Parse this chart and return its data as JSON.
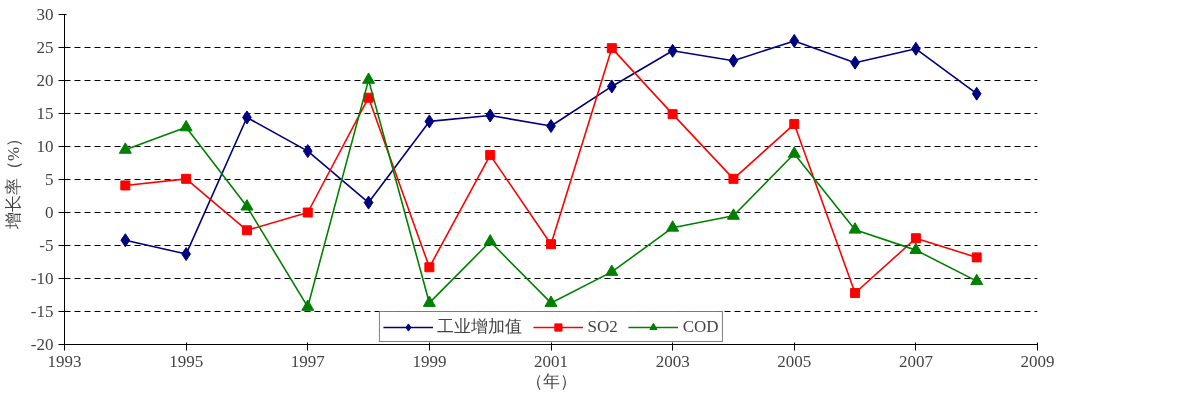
{
  "chart_data": {
    "type": "line",
    "ylabel": "增长率（%）",
    "xlabel": "（年）",
    "x": [
      1994,
      1995,
      1996,
      1997,
      1998,
      1999,
      2000,
      2001,
      2002,
      2003,
      2004,
      2005,
      2006,
      2007,
      2008
    ],
    "series": [
      {
        "name": "工业增加值",
        "color": "#000080",
        "marker": "diamond",
        "values": [
          -4.2,
          -6.3,
          14.4,
          9.3,
          1.5,
          13.8,
          14.7,
          13.1,
          19.1,
          24.5,
          23,
          26,
          22.7,
          24.8,
          18
        ]
      },
      {
        "name": "SO2",
        "color": "#ff0000",
        "marker": "square",
        "values": [
          4.1,
          5.1,
          -2.7,
          0,
          17.4,
          -8.3,
          8.7,
          -4.8,
          24.9,
          14.9,
          5.1,
          13.4,
          -12.2,
          -3.9,
          -6.8
        ]
      },
      {
        "name": "COD",
        "color": "#008000",
        "marker": "triangle",
        "values": [
          9.5,
          12.9,
          0.9,
          -14.3,
          20.1,
          -13.7,
          -4.4,
          -13.7,
          -9,
          -2.3,
          -0.5,
          8.9,
          -2.6,
          -5.7,
          -10.4
        ]
      }
    ],
    "xlim": [
      1993,
      2009
    ],
    "xticks": [
      1993,
      1995,
      1997,
      1999,
      2001,
      2003,
      2005,
      2007,
      2009
    ],
    "ylim": [
      -20,
      30
    ],
    "yticks": [
      -20,
      -15,
      -10,
      -5,
      0,
      5,
      10,
      15,
      20,
      25,
      30
    ],
    "grid": "y",
    "legend": "bottom",
    "line_style": "solid"
  }
}
